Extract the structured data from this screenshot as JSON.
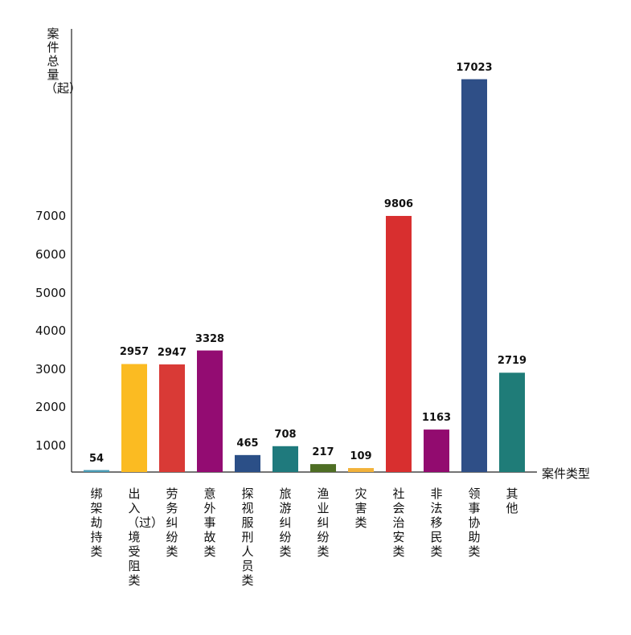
{
  "chart_data": {
    "type": "bar",
    "ylabel": "案件总量（起）",
    "xlabel": "案件类型",
    "yticks": [
      1000,
      2000,
      3000,
      4000,
      5000,
      6000,
      7000
    ],
    "categories": [
      "绑架劫持类",
      "出入（过）境受阻类",
      "劳务纠纷类",
      "意外事故类",
      "探视服刑人员类",
      "旅游纠纷类",
      "渔业纠纷类",
      "灾害类",
      "社会治安类",
      "非法移民类",
      "领事协助类",
      "其他"
    ],
    "values": [
      54,
      2957,
      2947,
      3328,
      465,
      708,
      217,
      109,
      9806,
      1163,
      17023,
      2719
    ],
    "value_labels": [
      "54",
      "2957",
      "2947",
      "3328",
      "465",
      "708",
      "217",
      "109",
      "9806",
      "1163",
      "17023",
      "2719"
    ],
    "colors": [
      "#4a9bb5",
      "#fbbb22",
      "#d93a36",
      "#930c72",
      "#2b4f87",
      "#1f7a7d",
      "#4e6e24",
      "#f2b23a",
      "#d82f2f",
      "#920b6f",
      "#2f4f87",
      "#1f7c78"
    ]
  }
}
